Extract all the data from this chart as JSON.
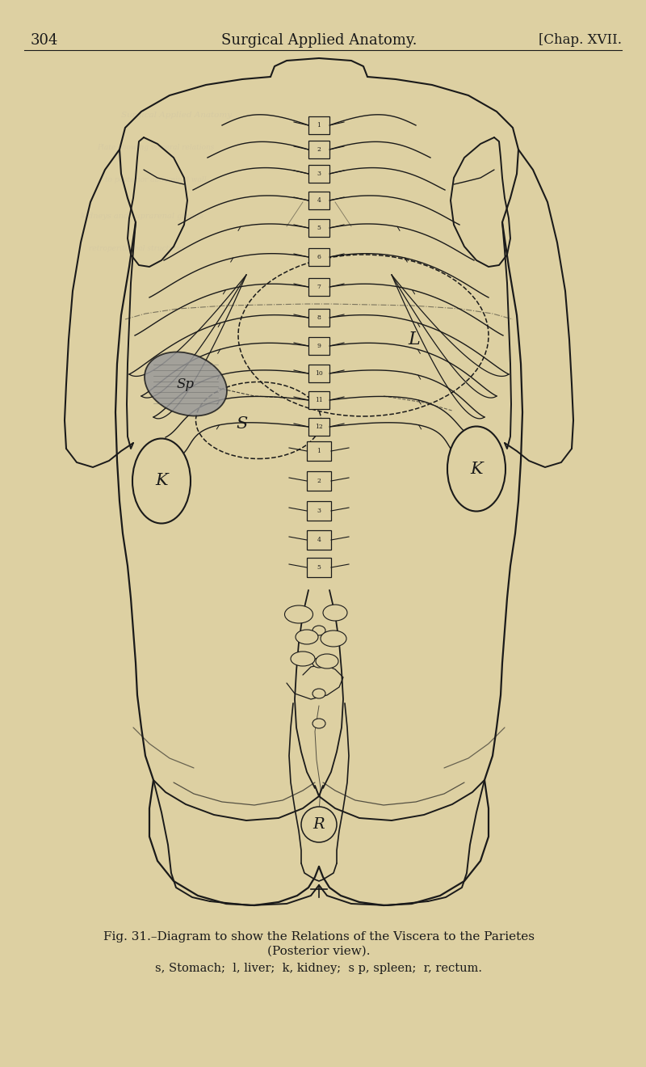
{
  "background_color": "#ddd0a2",
  "header_page_num": "304",
  "header_title": "Surgical Applied Anatomy.",
  "header_right": "[Chap. XVII.",
  "caption_line1": "Fig. 31.–Diagram to show the Relations of the Viscera to the Parietes",
  "caption_line2": "(Posterior view).",
  "caption_line3": "s, Stomach;  l, liver;  k, kidney;  s p, spleen;  r, rectum.",
  "fig_width": 8.0,
  "fig_height": 13.2,
  "dpi": 100,
  "lc": "#1a1a1a",
  "spleen_fill": "#999999",
  "text_color": "#1a1a1a"
}
